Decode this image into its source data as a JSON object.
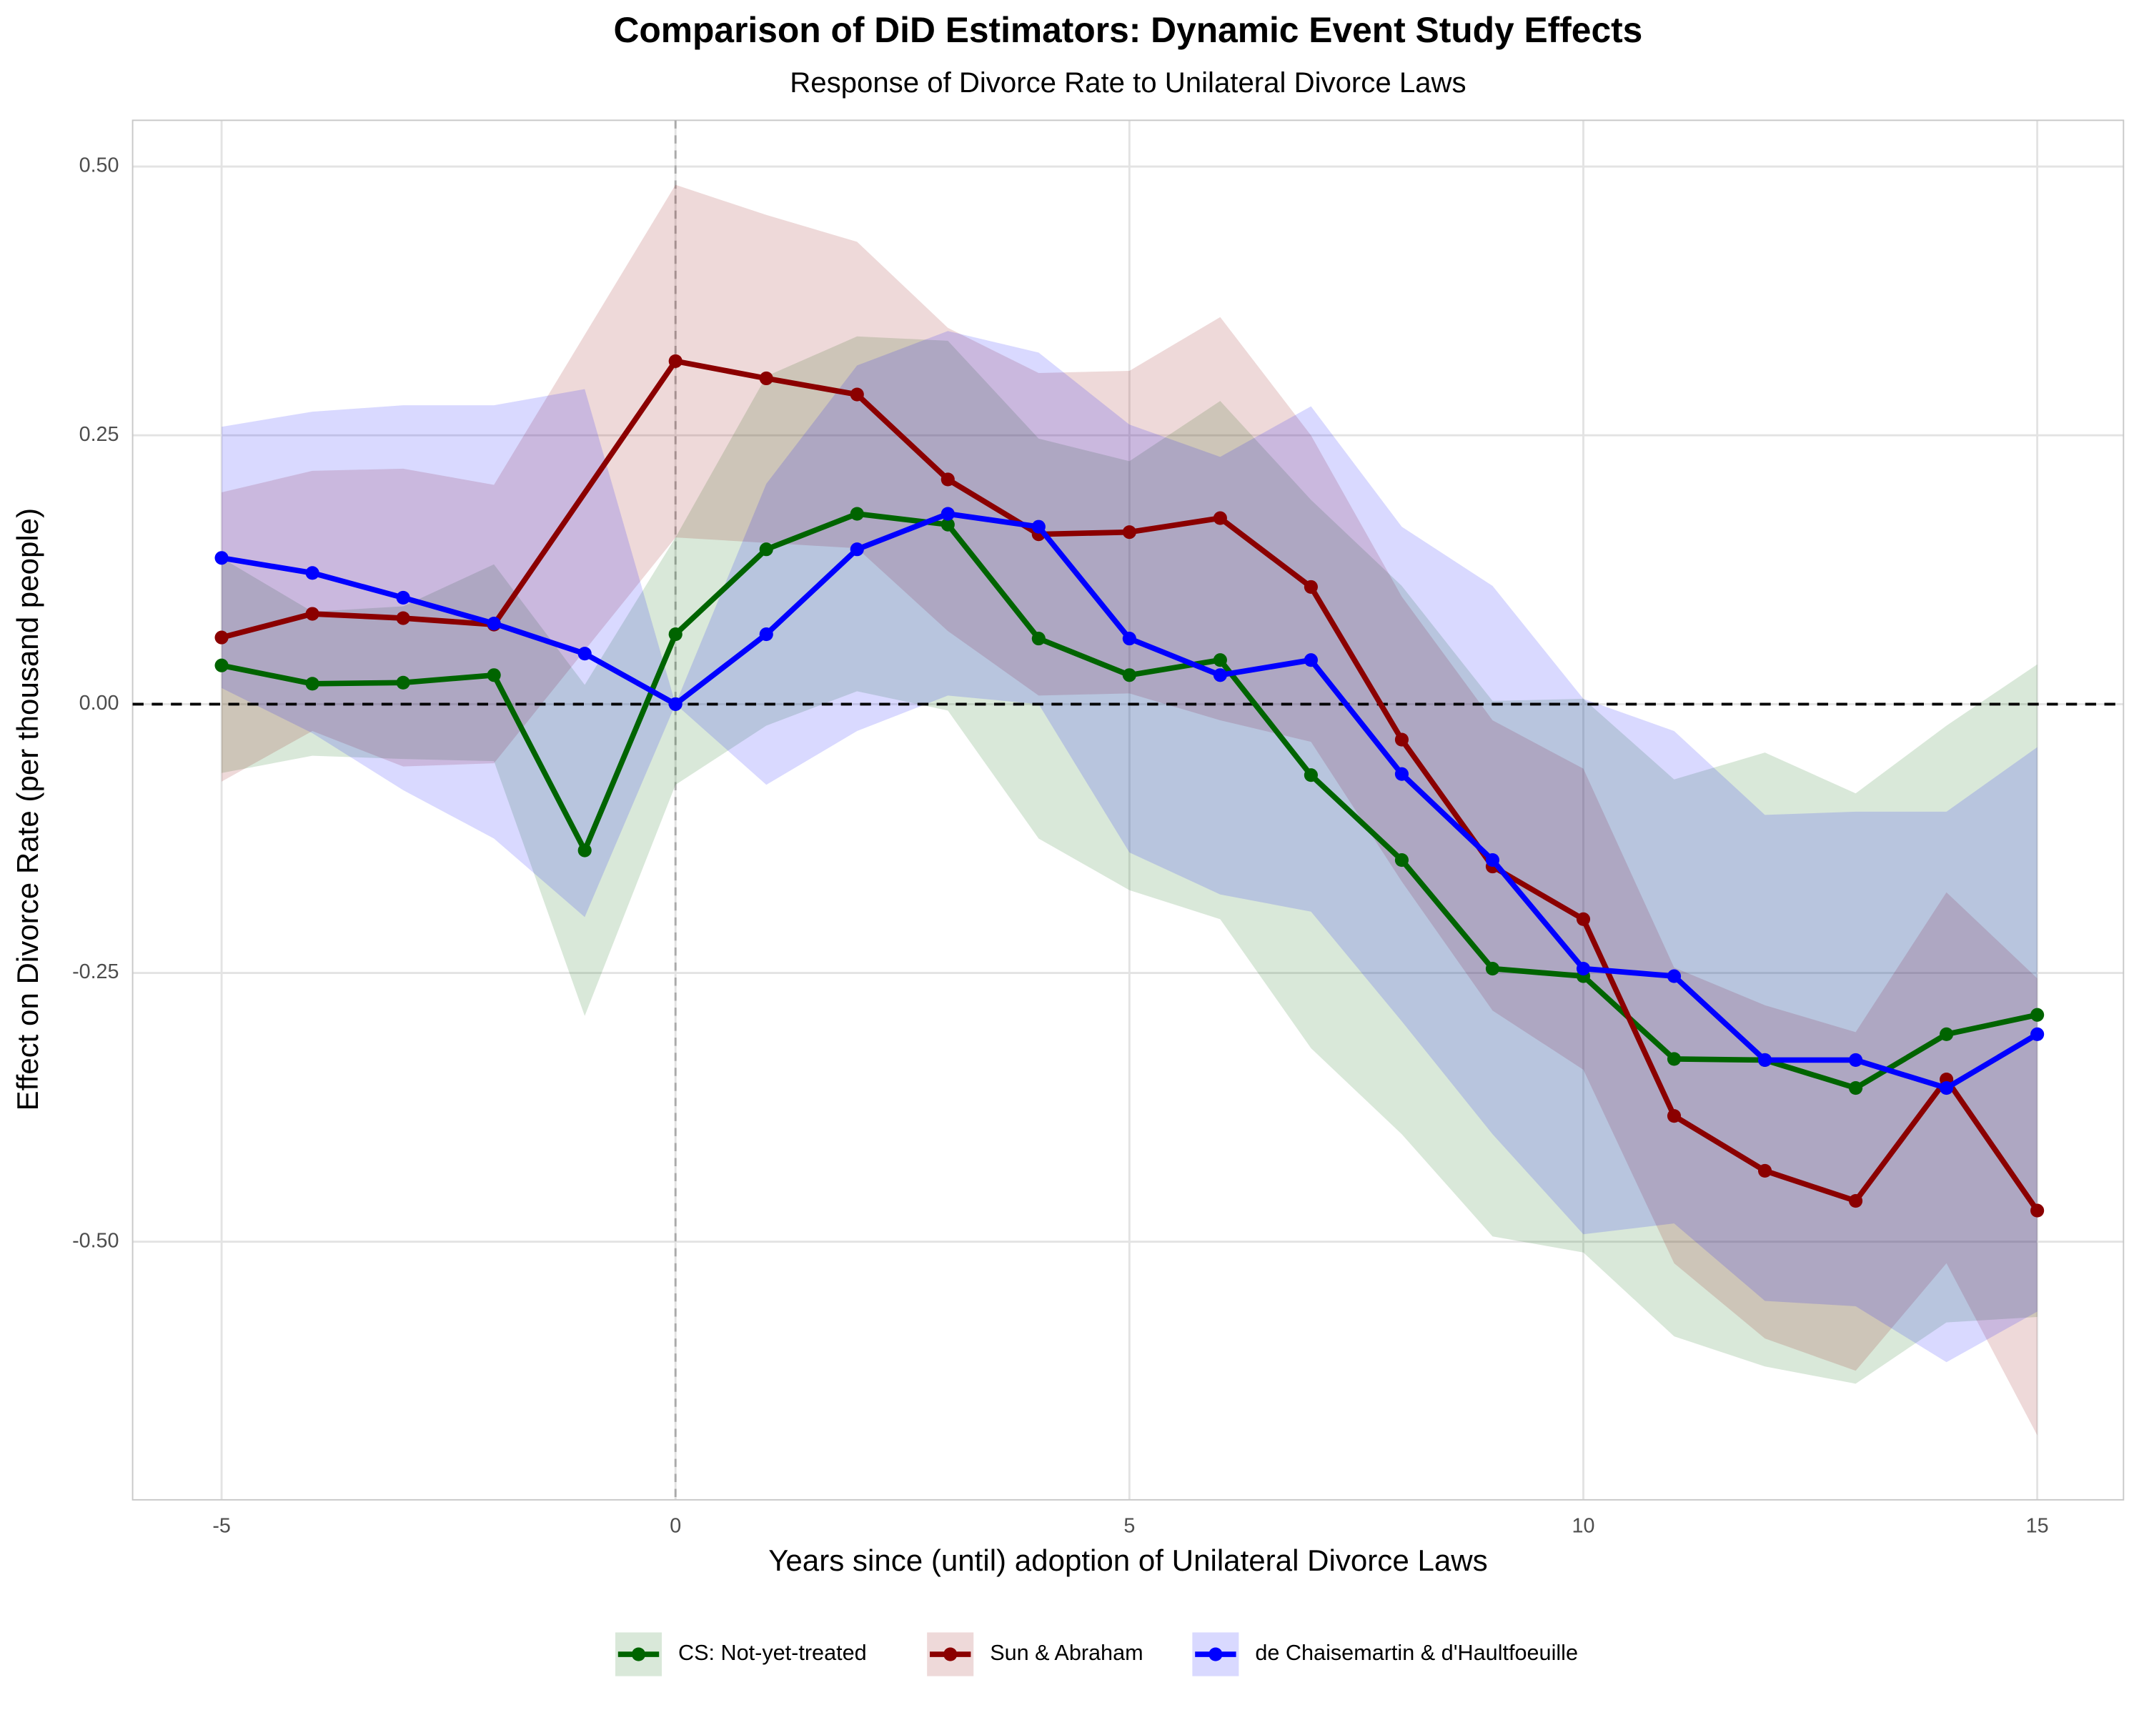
{
  "chart_data": {
    "type": "line",
    "title": "Comparison of DiD Estimators: Dynamic Event Study Effects",
    "subtitle": "Response of Divorce Rate to Unilateral Divorce Laws",
    "x_label": "Years since (until) adoption of Unilateral Divorce Laws",
    "y_label": "Effect on Divorce Rate (per thousand people)",
    "xlim": [
      -5.98,
      15.95
    ],
    "ylim": [
      -0.74,
      0.543
    ],
    "xticks": [
      -5,
      0,
      5,
      10,
      15
    ],
    "yticks": [
      {
        "value": 0.5,
        "label": "0.50"
      },
      {
        "value": 0.25,
        "label": "0.25"
      },
      {
        "value": 0,
        "label": "0.00"
      },
      {
        "value": -0.25,
        "label": "-0.25"
      },
      {
        "value": -0.5,
        "label": "-0.50"
      }
    ],
    "grid": true,
    "hline": 0,
    "vline": 0,
    "legend": "bottom",
    "series": [
      {
        "name": "CS: Not-yet-treated",
        "color": "#006400",
        "x": [
          -5,
          -4,
          -3,
          -2,
          -1,
          0,
          1,
          2,
          3,
          4,
          5,
          6,
          7,
          8,
          9,
          10,
          11,
          12,
          13,
          14,
          15
        ],
        "values": [
          0.036,
          0.019,
          0.02,
          0.027,
          -0.136,
          0.065,
          0.144,
          0.177,
          0.167,
          0.061,
          0.027,
          0.041,
          -0.066,
          -0.145,
          -0.246,
          -0.253,
          -0.33,
          -0.331,
          -0.357,
          -0.307,
          -0.289
        ],
        "upper": [
          0.136,
          0.086,
          0.091,
          0.13,
          0.018,
          0.155,
          0.305,
          0.342,
          0.338,
          0.247,
          0.226,
          0.282,
          0.19,
          0.11,
          0.003,
          0.005,
          -0.07,
          -0.045,
          -0.083,
          -0.02,
          0.037
        ],
        "lower": [
          -0.064,
          -0.048,
          -0.051,
          -0.053,
          -0.29,
          -0.075,
          -0.02,
          0.012,
          -0.006,
          -0.125,
          -0.173,
          -0.2,
          -0.32,
          -0.4,
          -0.495,
          -0.51,
          -0.588,
          -0.616,
          -0.632,
          -0.575,
          -0.57
        ]
      },
      {
        "name": "Sun & Abraham",
        "color": "#8b0000",
        "x": [
          -5,
          -4,
          -3,
          -2,
          0,
          1,
          2,
          3,
          4,
          5,
          6,
          7,
          8,
          9,
          10,
          11,
          12,
          13,
          14,
          15
        ],
        "values": [
          0.062,
          0.084,
          0.08,
          0.074,
          0.319,
          0.303,
          0.288,
          0.209,
          0.158,
          0.16,
          0.173,
          0.109,
          -0.033,
          -0.151,
          -0.2,
          -0.383,
          -0.434,
          -0.462,
          -0.349,
          -0.471
        ],
        "upper": [
          0.197,
          0.217,
          0.219,
          0.204,
          0.483,
          0.455,
          0.43,
          0.35,
          0.308,
          0.31,
          0.36,
          0.25,
          0.1,
          -0.015,
          -0.06,
          -0.245,
          -0.28,
          -0.305,
          -0.175,
          -0.255
        ],
        "lower": [
          -0.072,
          -0.025,
          -0.058,
          -0.055,
          0.155,
          0.15,
          0.145,
          0.068,
          0.008,
          0.01,
          -0.015,
          -0.035,
          -0.165,
          -0.285,
          -0.34,
          -0.52,
          -0.59,
          -0.62,
          -0.52,
          -0.68
        ]
      },
      {
        "name": "de Chaisemartin & d'Haultfoeuille",
        "color": "#0000ff",
        "x": [
          -5,
          -4,
          -3,
          -2,
          -1,
          0,
          1,
          2,
          3,
          4,
          5,
          6,
          7,
          8,
          9,
          10,
          11,
          12,
          13,
          14,
          15
        ],
        "values": [
          0.136,
          0.122,
          0.099,
          0.075,
          0.047,
          0,
          0.065,
          0.144,
          0.177,
          0.165,
          0.061,
          0.027,
          0.041,
          -0.065,
          -0.145,
          -0.246,
          -0.253,
          -0.331,
          -0.331,
          -0.357,
          -0.307
        ],
        "upper": [
          0.258,
          0.272,
          0.278,
          0.278,
          0.293,
          0,
          0.205,
          0.315,
          0.347,
          0.327,
          0.26,
          0.23,
          0.277,
          0.165,
          0.11,
          0.005,
          -0.025,
          -0.103,
          -0.1,
          -0.1,
          -0.04
        ],
        "lower": [
          0.015,
          -0.027,
          -0.08,
          -0.125,
          -0.198,
          0,
          -0.075,
          -0.025,
          0.008,
          0,
          -0.138,
          -0.177,
          -0.193,
          -0.295,
          -0.4,
          -0.493,
          -0.483,
          -0.555,
          -0.56,
          -0.612,
          -0.565
        ]
      }
    ]
  }
}
